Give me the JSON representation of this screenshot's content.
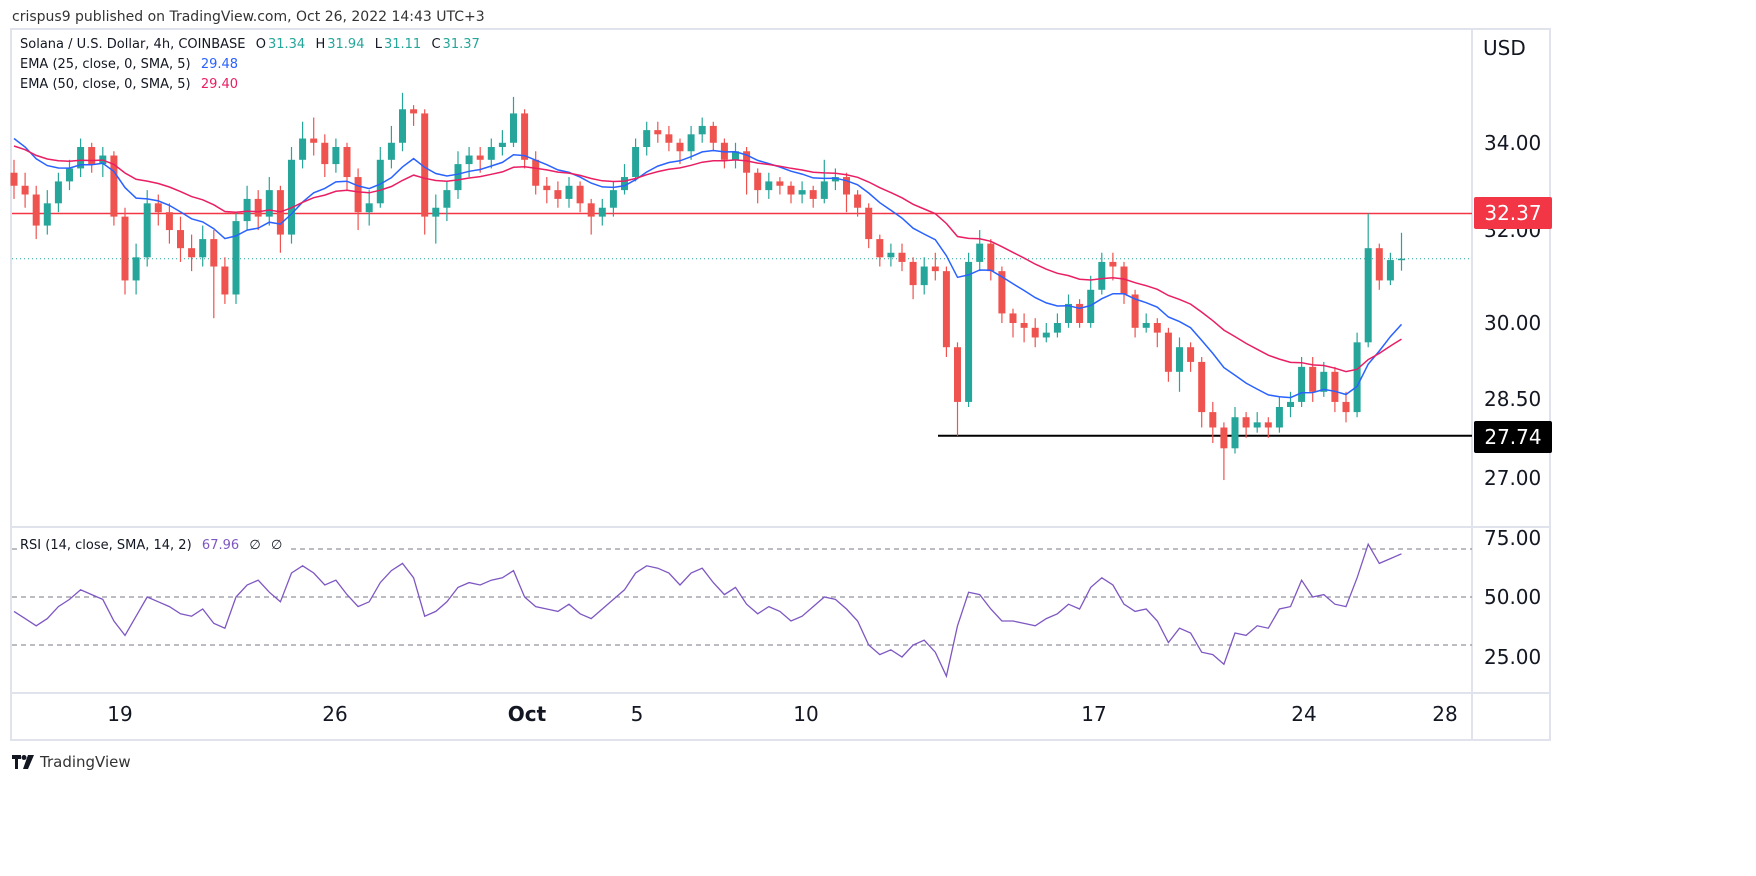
{
  "publisher_line": "crispus9 published on TradingView.com, Oct 26, 2022 14:43 UTC+3",
  "legend": {
    "symbol": "Solana / U.S. Dollar, 4h, COINBASE",
    "o_label": "O",
    "o": "31.34",
    "h_label": "H",
    "h": "31.94",
    "l_label": "L",
    "l": "31.11",
    "c_label": "C",
    "c": "31.37",
    "ema25_label": "EMA (25, close, 0, SMA, 5)",
    "ema25_value": "29.48",
    "ema50_label": "EMA (50, close, 0, SMA, 5)",
    "ema50_value": "29.40",
    "rsi_label": "RSI (14, close, SMA, 14, 2)",
    "rsi_value": "67.96",
    "rsi_extra1": "∅",
    "rsi_extra2": "∅"
  },
  "price_axis": {
    "currency": "USD",
    "ticks": [
      "34.00",
      "32.00",
      "30.00",
      "28.50",
      "27.00"
    ],
    "resistance_tag": "32.37",
    "support_tag": "27.74"
  },
  "rsi_axis": {
    "ticks": [
      "75.00",
      "50.00",
      "25.00"
    ]
  },
  "time_axis": {
    "ticks": [
      "19",
      "26",
      "Oct",
      "5",
      "10",
      "17",
      "24",
      "28"
    ]
  },
  "brand": "TradingView",
  "colors": {
    "up": "#26a69a",
    "down": "#ef5350",
    "ema25": "#2962ff",
    "ema50": "#e91e63",
    "rsi": "#7e57c2",
    "resistance": "#f23645",
    "support": "#000000"
  },
  "chart_data": {
    "type": "candlestick",
    "title": "Solana / U.S. Dollar, 4h, COINBASE",
    "ylabel": "USD",
    "yscale": "log",
    "ylim": [
      26.04,
      36.8
    ],
    "resistance": 32.37,
    "support": 27.74,
    "last_price": 31.37,
    "candles": [
      [
        33.3,
        33.6,
        32.7,
        33.0
      ],
      [
        33.0,
        33.3,
        32.5,
        32.8
      ],
      [
        32.8,
        33.0,
        31.8,
        32.1
      ],
      [
        32.1,
        32.9,
        31.9,
        32.6
      ],
      [
        32.6,
        33.3,
        32.4,
        33.1
      ],
      [
        33.1,
        33.6,
        32.9,
        33.4
      ],
      [
        33.4,
        34.1,
        33.2,
        33.9
      ],
      [
        33.9,
        34.0,
        33.3,
        33.5
      ],
      [
        33.5,
        33.9,
        33.2,
        33.7
      ],
      [
        33.7,
        33.8,
        32.1,
        32.3
      ],
      [
        32.3,
        32.5,
        30.6,
        30.9
      ],
      [
        30.9,
        31.7,
        30.6,
        31.4
      ],
      [
        31.4,
        32.9,
        31.2,
        32.6
      ],
      [
        32.6,
        32.8,
        32.1,
        32.4
      ],
      [
        32.4,
        32.6,
        31.7,
        32.0
      ],
      [
        32.0,
        32.3,
        31.3,
        31.6
      ],
      [
        31.6,
        31.9,
        31.1,
        31.4
      ],
      [
        31.4,
        32.1,
        31.2,
        31.8
      ],
      [
        31.8,
        32.0,
        30.1,
        31.2
      ],
      [
        31.2,
        31.4,
        30.4,
        30.6
      ],
      [
        30.6,
        32.4,
        30.4,
        32.2
      ],
      [
        32.2,
        33.0,
        32.0,
        32.7
      ],
      [
        32.7,
        32.9,
        32.0,
        32.3
      ],
      [
        32.3,
        33.2,
        32.1,
        32.9
      ],
      [
        32.9,
        33.0,
        31.5,
        31.9
      ],
      [
        31.9,
        33.9,
        31.7,
        33.6
      ],
      [
        33.6,
        34.5,
        33.4,
        34.1
      ],
      [
        34.1,
        34.6,
        33.7,
        34.0
      ],
      [
        34.0,
        34.2,
        33.2,
        33.5
      ],
      [
        33.5,
        34.1,
        33.3,
        33.9
      ],
      [
        33.9,
        34.0,
        32.9,
        33.2
      ],
      [
        33.2,
        33.4,
        32.0,
        32.4
      ],
      [
        32.4,
        32.9,
        32.1,
        32.6
      ],
      [
        32.6,
        33.9,
        32.5,
        33.6
      ],
      [
        33.6,
        34.4,
        33.4,
        34.0
      ],
      [
        34.0,
        35.2,
        33.8,
        34.8
      ],
      [
        34.8,
        34.9,
        34.4,
        34.7
      ],
      [
        34.7,
        34.8,
        31.9,
        32.3
      ],
      [
        32.3,
        32.8,
        31.7,
        32.5
      ],
      [
        32.5,
        33.1,
        32.2,
        32.9
      ],
      [
        32.9,
        33.8,
        32.7,
        33.5
      ],
      [
        33.5,
        33.9,
        33.2,
        33.7
      ],
      [
        33.7,
        33.9,
        33.3,
        33.6
      ],
      [
        33.6,
        34.1,
        33.4,
        33.9
      ],
      [
        33.9,
        34.3,
        33.7,
        34.0
      ],
      [
        34.0,
        35.1,
        33.9,
        34.7
      ],
      [
        34.7,
        34.8,
        33.4,
        33.6
      ],
      [
        33.6,
        33.8,
        32.8,
        33.0
      ],
      [
        33.0,
        33.2,
        32.6,
        32.9
      ],
      [
        32.9,
        33.1,
        32.5,
        32.7
      ],
      [
        32.7,
        33.2,
        32.5,
        33.0
      ],
      [
        33.0,
        33.1,
        32.4,
        32.6
      ],
      [
        32.6,
        32.7,
        31.9,
        32.3
      ],
      [
        32.3,
        32.7,
        32.1,
        32.5
      ],
      [
        32.5,
        33.1,
        32.3,
        32.9
      ],
      [
        32.9,
        33.5,
        32.8,
        33.2
      ],
      [
        33.2,
        34.1,
        33.1,
        33.9
      ],
      [
        33.9,
        34.5,
        33.7,
        34.3
      ],
      [
        34.3,
        34.5,
        34.0,
        34.2
      ],
      [
        34.2,
        34.4,
        33.8,
        34.0
      ],
      [
        34.0,
        34.1,
        33.5,
        33.8
      ],
      [
        33.8,
        34.4,
        33.6,
        34.2
      ],
      [
        34.2,
        34.6,
        34.0,
        34.4
      ],
      [
        34.4,
        34.5,
        33.8,
        34.0
      ],
      [
        34.0,
        34.1,
        33.4,
        33.6
      ],
      [
        33.6,
        34.0,
        33.4,
        33.8
      ],
      [
        33.8,
        33.9,
        32.8,
        33.3
      ],
      [
        33.3,
        33.4,
        32.6,
        32.9
      ],
      [
        32.9,
        33.3,
        32.7,
        33.1
      ],
      [
        33.1,
        33.2,
        32.8,
        33.0
      ],
      [
        33.0,
        33.1,
        32.6,
        32.8
      ],
      [
        32.8,
        33.1,
        32.6,
        32.9
      ],
      [
        32.9,
        33.0,
        32.5,
        32.7
      ],
      [
        32.7,
        33.6,
        32.6,
        33.1
      ],
      [
        33.1,
        33.4,
        32.9,
        33.2
      ],
      [
        33.2,
        33.3,
        32.4,
        32.8
      ],
      [
        32.8,
        32.9,
        32.3,
        32.5
      ],
      [
        32.5,
        32.6,
        31.6,
        31.8
      ],
      [
        31.8,
        31.9,
        31.2,
        31.4
      ],
      [
        31.4,
        31.7,
        31.2,
        31.5
      ],
      [
        31.5,
        31.7,
        31.1,
        31.3
      ],
      [
        31.3,
        31.4,
        30.5,
        30.8
      ],
      [
        30.8,
        31.4,
        30.6,
        31.2
      ],
      [
        31.2,
        31.5,
        30.9,
        31.1
      ],
      [
        31.1,
        31.2,
        29.3,
        29.5
      ],
      [
        29.5,
        29.6,
        27.74,
        28.4
      ],
      [
        28.4,
        31.5,
        28.3,
        31.3
      ],
      [
        31.3,
        32.0,
        31.1,
        31.7
      ],
      [
        31.7,
        31.8,
        30.9,
        31.1
      ],
      [
        31.1,
        31.2,
        30.0,
        30.2
      ],
      [
        30.2,
        30.3,
        29.7,
        30.0
      ],
      [
        30.0,
        30.2,
        29.6,
        29.9
      ],
      [
        29.9,
        30.1,
        29.5,
        29.7
      ],
      [
        29.7,
        30.0,
        29.6,
        29.8
      ],
      [
        29.8,
        30.2,
        29.7,
        30.0
      ],
      [
        30.0,
        30.6,
        29.9,
        30.4
      ],
      [
        30.4,
        30.5,
        29.9,
        30.0
      ],
      [
        30.0,
        31.0,
        29.9,
        30.7
      ],
      [
        30.7,
        31.5,
        30.6,
        31.3
      ],
      [
        31.3,
        31.5,
        30.9,
        31.2
      ],
      [
        31.2,
        31.3,
        30.4,
        30.6
      ],
      [
        30.6,
        30.7,
        29.7,
        29.9
      ],
      [
        29.9,
        30.2,
        29.8,
        30.0
      ],
      [
        30.0,
        30.1,
        29.5,
        29.8
      ],
      [
        29.8,
        29.9,
        28.8,
        29.0
      ],
      [
        29.0,
        29.7,
        28.6,
        29.5
      ],
      [
        29.5,
        29.6,
        29.0,
        29.2
      ],
      [
        29.2,
        29.3,
        27.9,
        28.2
      ],
      [
        28.2,
        28.4,
        27.6,
        27.9
      ],
      [
        27.9,
        28.0,
        26.9,
        27.5
      ],
      [
        27.5,
        28.3,
        27.4,
        28.1
      ],
      [
        28.1,
        28.2,
        27.7,
        27.9
      ],
      [
        27.9,
        28.2,
        27.8,
        28.0
      ],
      [
        28.0,
        28.1,
        27.7,
        27.9
      ],
      [
        27.9,
        28.5,
        27.8,
        28.3
      ],
      [
        28.3,
        28.6,
        28.1,
        28.4
      ],
      [
        28.4,
        29.3,
        28.3,
        29.1
      ],
      [
        29.1,
        29.3,
        28.4,
        28.6
      ],
      [
        28.6,
        29.2,
        28.5,
        29.0
      ],
      [
        29.0,
        29.1,
        28.2,
        28.4
      ],
      [
        28.4,
        28.6,
        28.0,
        28.2
      ],
      [
        28.2,
        29.8,
        28.1,
        29.6
      ],
      [
        29.6,
        32.37,
        29.5,
        31.6
      ],
      [
        31.6,
        31.7,
        30.7,
        30.9
      ],
      [
        30.9,
        31.5,
        30.8,
        31.34
      ],
      [
        31.34,
        31.94,
        31.11,
        31.37
      ]
    ],
    "rsi": [
      44,
      41,
      38,
      41,
      46,
      49,
      53,
      51,
      49,
      40,
      34,
      42,
      50,
      48,
      46,
      43,
      42,
      45,
      39,
      37,
      50,
      55,
      57,
      52,
      48,
      60,
      63,
      60,
      55,
      57,
      51,
      46,
      48,
      56,
      61,
      64,
      58,
      42,
      44,
      48,
      54,
      56,
      55,
      57,
      58,
      61,
      50,
      46,
      45,
      44,
      47,
      43,
      41,
      45,
      49,
      53,
      60,
      63,
      62,
      60,
      55,
      60,
      62,
      56,
      51,
      54,
      47,
      43,
      46,
      44,
      40,
      42,
      46,
      50,
      49,
      45,
      40,
      30,
      26,
      28,
      25,
      30,
      32,
      27,
      17,
      38,
      52,
      51,
      45,
      40,
      40,
      39,
      38,
      41,
      43,
      47,
      45,
      54,
      58,
      55,
      47,
      44,
      45,
      40,
      31,
      37,
      35,
      27,
      26,
      22,
      35,
      34,
      38,
      37,
      45,
      46,
      57,
      50,
      51,
      47,
      46,
      58,
      72,
      64,
      66,
      68
    ],
    "rsi_levels": [
      70,
      50,
      30
    ],
    "rsi_ylim": [
      17.5,
      87.5
    ]
  }
}
